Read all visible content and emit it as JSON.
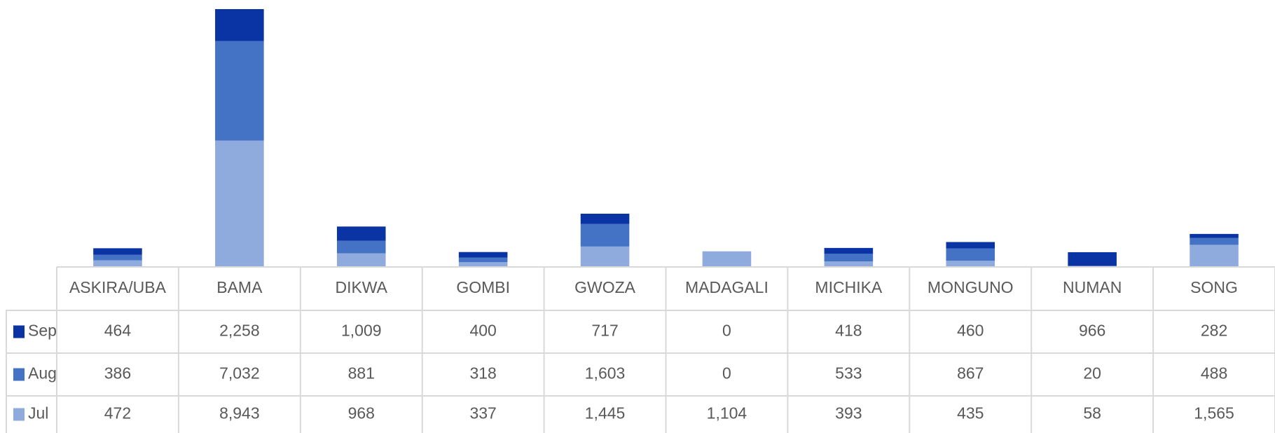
{
  "chart_data": {
    "type": "stacked-bar",
    "categories": [
      "ASKIRA/UBA",
      "BAMA",
      "DIKWA",
      "GOMBI",
      "GWOZA",
      "MADAGALI",
      "MICHIKA",
      "MONGUNO",
      "NUMAN",
      "SONG"
    ],
    "series": [
      {
        "name": "Jul",
        "color": "#8faadc",
        "values": [
          472,
          8943,
          968,
          337,
          1445,
          1104,
          393,
          435,
          58,
          1565
        ],
        "value_labels": [
          "472",
          "8,943",
          "968",
          "337",
          "1,445",
          "1,104",
          "393",
          "435",
          "58",
          "1,565"
        ]
      },
      {
        "name": "Aug",
        "color": "#4472c4",
        "values": [
          386,
          7032,
          881,
          318,
          1603,
          0,
          533,
          867,
          20,
          488
        ],
        "value_labels": [
          "386",
          "7,032",
          "881",
          "318",
          "1,603",
          "0",
          "533",
          "867",
          "20",
          "488"
        ]
      },
      {
        "name": "Sep",
        "color": "#0a33a3",
        "values": [
          464,
          2258,
          1009,
          400,
          717,
          0,
          418,
          460,
          966,
          282
        ],
        "value_labels": [
          "464",
          "2,258",
          "1,009",
          "400",
          "717",
          "0",
          "418",
          "460",
          "966",
          "282"
        ]
      }
    ]
  }
}
